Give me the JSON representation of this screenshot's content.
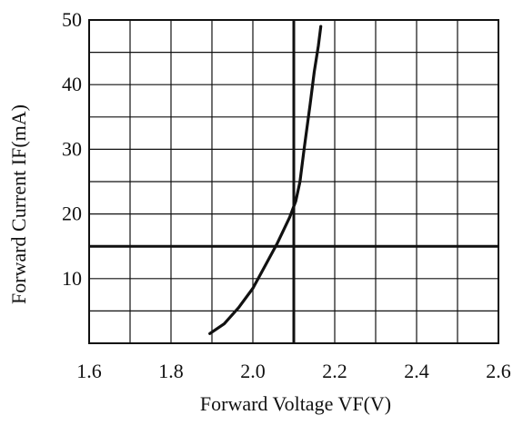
{
  "chart_data": {
    "type": "line",
    "title": "",
    "xlabel": "Forward Voltage VF(V)",
    "ylabel": "Forward Current IF(mA)",
    "xlim": [
      1.6,
      2.6
    ],
    "ylim": [
      0,
      50
    ],
    "x_ticks": [
      1.6,
      1.8,
      2.0,
      2.2,
      2.4,
      2.6
    ],
    "x_tick_labels": [
      "1.6",
      "1.8",
      "2.0",
      "2.2",
      "2.4",
      "2.6"
    ],
    "y_ticks": [
      10,
      20,
      30,
      40,
      50
    ],
    "y_tick_labels": [
      "10",
      "20",
      "30",
      "40",
      "50"
    ],
    "grid": true,
    "x_grid_step": 0.1,
    "y_grid_step": 5,
    "reference_lines": {
      "x": 2.1,
      "y": 15
    },
    "series": [
      {
        "x": [
          1.895,
          1.93,
          1.965,
          2.0,
          2.03,
          2.06,
          2.09,
          2.105,
          2.115,
          2.125,
          2.14,
          2.15,
          2.16,
          2.166
        ],
        "values": [
          1.5,
          3,
          5.5,
          8.5,
          12,
          15.5,
          19.5,
          22,
          25,
          30,
          37,
          42,
          46,
          49
        ]
      }
    ],
    "colors": {
      "line": "#111111",
      "grid": "#111111",
      "text": "#111111"
    }
  }
}
